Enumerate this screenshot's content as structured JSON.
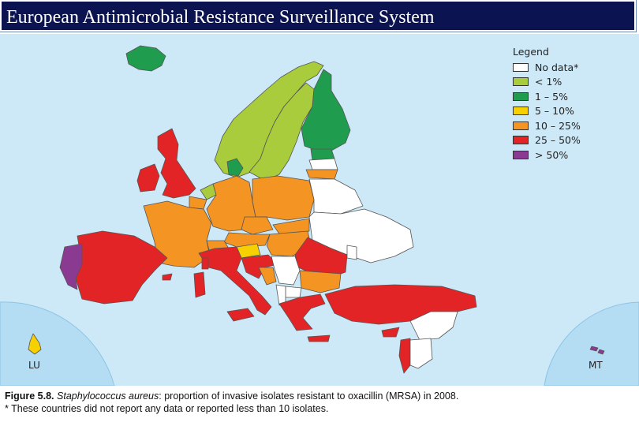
{
  "title": "European  Antimicrobial Resistance Surveillance System",
  "legend": {
    "title": "Legend",
    "items": [
      {
        "label": "No data*",
        "color": "#ffffff"
      },
      {
        "label": "< 1%",
        "color": "#a8cc3c"
      },
      {
        "label": "1 – 5%",
        "color": "#1f9c4e"
      },
      {
        "label": "5 – 10%",
        "color": "#f6d000"
      },
      {
        "label": "10 – 25%",
        "color": "#f39423"
      },
      {
        "label": "25 – 50%",
        "color": "#e32426"
      },
      {
        "label": "> 50%",
        "color": "#8b3a92"
      }
    ]
  },
  "insets": {
    "left_label": "LU",
    "right_label": "MT"
  },
  "caption": {
    "figure_number": "Figure 5.8.",
    "species": "Staphylococcus aureus",
    "text": ": proportion of invasive isolates resistant to oxacillin (MRSA) in 2008.",
    "footnote": "* These countries did not report any data or reported less than 10 isolates."
  },
  "colors": {
    "sea": "#cde9f7",
    "inset": "#b4ddf3",
    "title_bg": "#0b1450",
    "border": "#555555"
  }
}
